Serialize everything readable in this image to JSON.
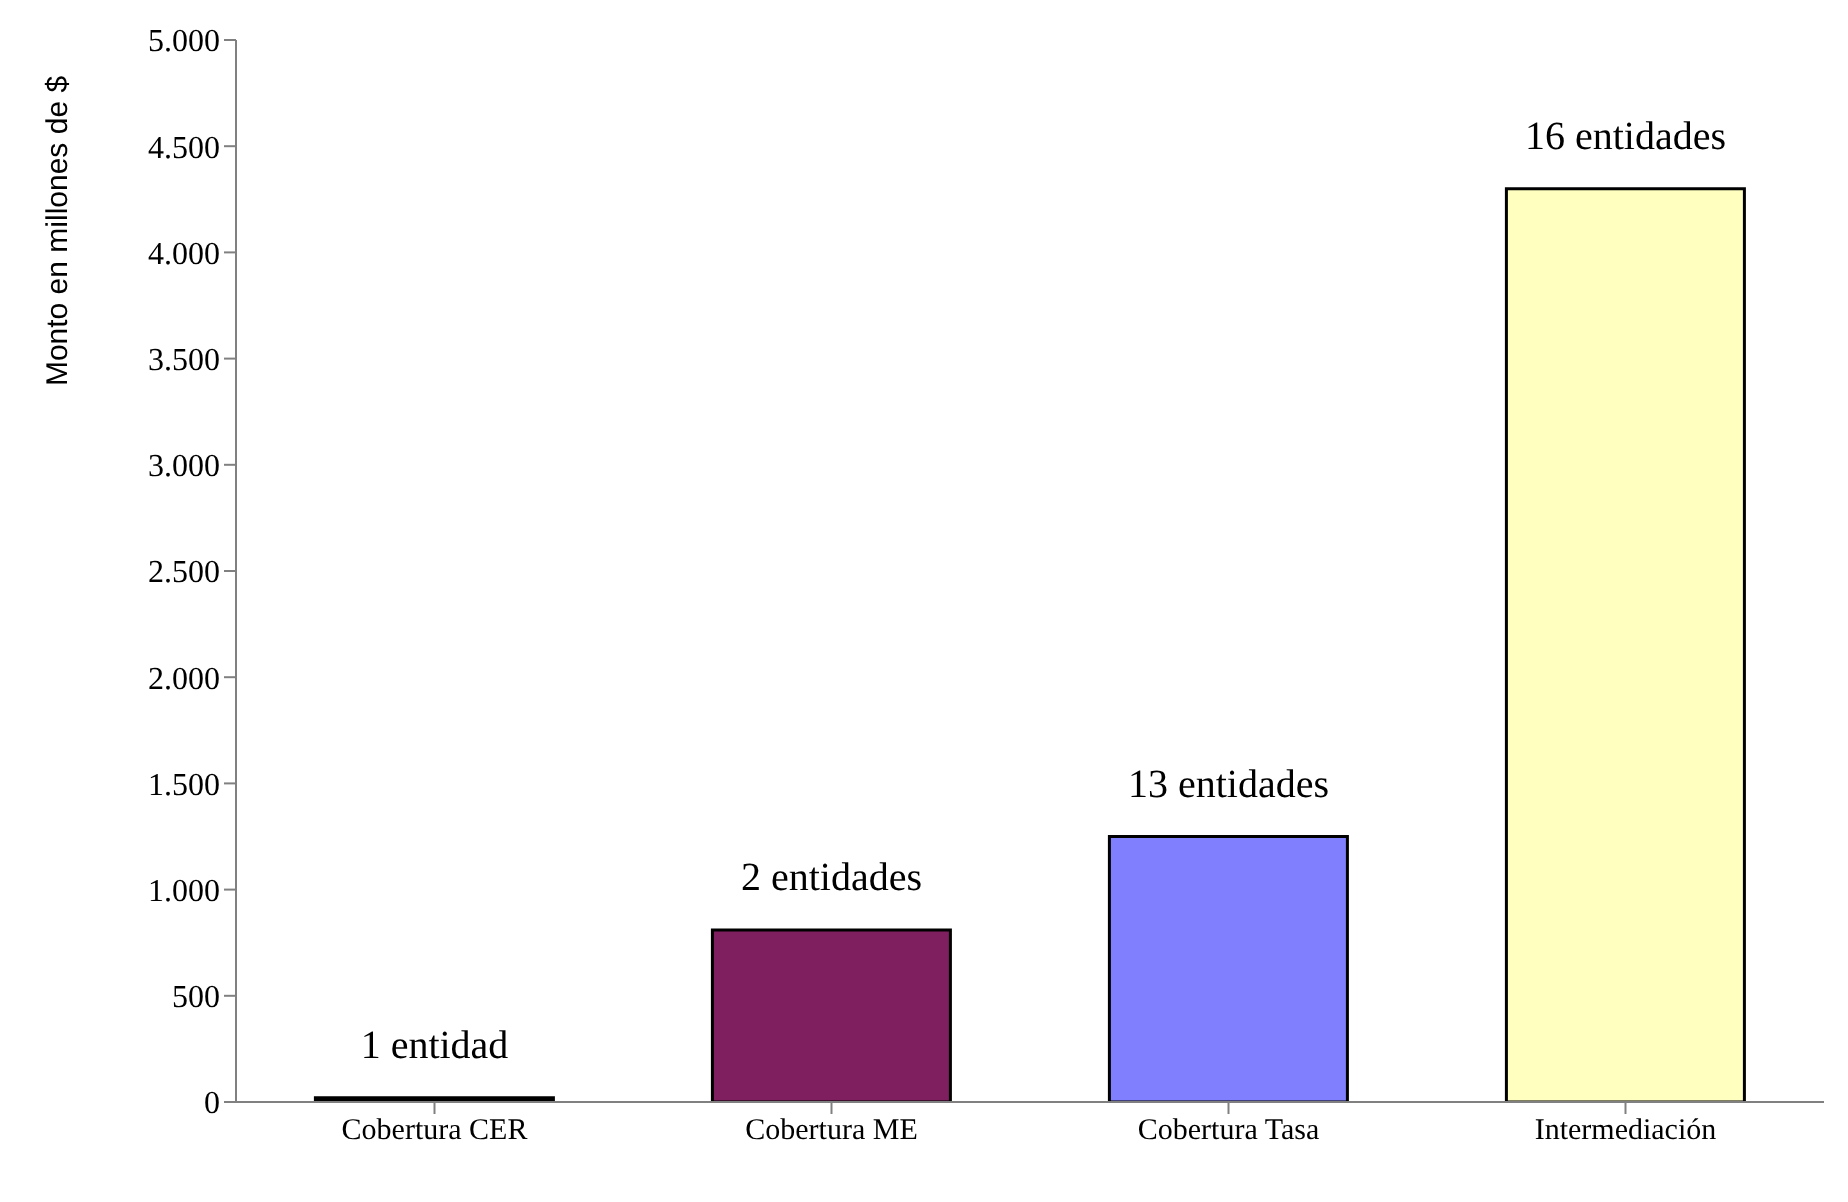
{
  "chart_data": {
    "type": "bar",
    "ylabel": "Monto en millones de $",
    "categories": [
      "Cobertura CER",
      "Cobertura ME",
      "Cobertura Tasa",
      "Intermediación"
    ],
    "values": [
      20,
      810,
      1250,
      4300
    ],
    "colors": [
      "#000000",
      "#7f1f5f",
      "#8080ff",
      "#ffffc0"
    ],
    "ylim": [
      0,
      5000
    ],
    "yticks": [
      0,
      {
        "value": 500,
        "label": "500"
      },
      {
        "value": 1000,
        "label": "1.000"
      },
      {
        "value": 1500,
        "label": "1.500"
      },
      {
        "value": 2000,
        "label": "2.000"
      },
      {
        "value": 2500,
        "label": "2.500"
      },
      {
        "value": 3000,
        "label": "3.000"
      },
      {
        "value": 3500,
        "label": "3.500"
      },
      {
        "value": 4000,
        "label": "4.000"
      },
      {
        "value": 4500,
        "label": "4.500"
      },
      {
        "value": 5000,
        "label": "5.000"
      }
    ],
    "annotations": [
      {
        "text": "1 entidad",
        "x": "Cobertura CER",
        "y": 20
      },
      {
        "text": "2 entidades",
        "x": "Cobertura ME",
        "y": 810
      },
      {
        "text": "13 entidades",
        "x": "Cobertura Tasa",
        "y": 1250
      },
      {
        "text": "16 entidades",
        "x": "Intermediación",
        "y": 4300
      }
    ]
  }
}
